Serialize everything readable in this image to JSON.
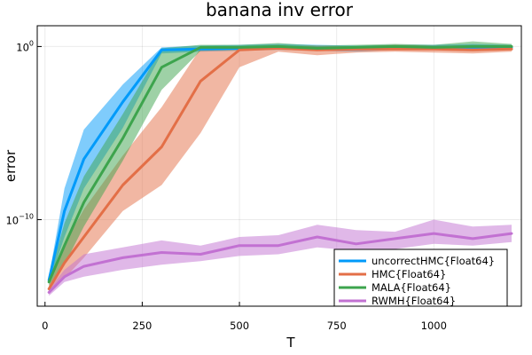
{
  "chart_data": {
    "type": "line",
    "title": "banana inv error",
    "xlabel": "T",
    "ylabel": "error",
    "xlim": [
      -20,
      1225
    ],
    "ylim_log10": [
      -15,
      1.2
    ],
    "yscale": "log10",
    "grid": true,
    "legend_position": "bottom-right",
    "x_ticks": [
      {
        "value": 0,
        "label": "0"
      },
      {
        "value": 250,
        "label": "250"
      },
      {
        "value": 500,
        "label": "500"
      },
      {
        "value": 750,
        "label": "750"
      },
      {
        "value": 1000,
        "label": "1000"
      }
    ],
    "y_ticks": [
      {
        "log10": 0,
        "base": "10",
        "exp": "0"
      },
      {
        "log10": -10,
        "base": "10",
        "exp": "−10"
      }
    ],
    "x": [
      10,
      50,
      100,
      200,
      300,
      400,
      500,
      600,
      700,
      800,
      900,
      1000,
      1100,
      1200
    ],
    "series": [
      {
        "name": "uncorrectHMC{Float64}",
        "color": "#009AFA",
        "log10_error": [
          -13.5,
          -9.5,
          -6.5,
          -3.2,
          -0.2,
          -0.15,
          -0.1,
          -0.05,
          -0.1,
          -0.1,
          -0.05,
          -0.05,
          -0.05,
          -0.05
        ],
        "band_lo": [
          -13.7,
          -11.0,
          -8.2,
          -4.7,
          -0.4,
          -0.3,
          -0.25,
          -0.2,
          -0.25,
          -0.3,
          -0.2,
          -0.2,
          -0.2,
          -0.2
        ],
        "band_hi": [
          -13.3,
          -8.2,
          -4.8,
          -2.2,
          -0.05,
          0.05,
          0.1,
          0.15,
          0.1,
          0.05,
          0.1,
          0.1,
          0.15,
          0.1
        ]
      },
      {
        "name": "HMC{Float64}",
        "color": "#E36F47",
        "log10_error": [
          -14.0,
          -12.5,
          -11.0,
          -8.0,
          -5.8,
          -2.0,
          -0.2,
          -0.1,
          -0.2,
          -0.15,
          -0.15,
          -0.15,
          -0.2,
          -0.15
        ],
        "band_lo": [
          -14.2,
          -13.4,
          -12.2,
          -9.5,
          -8.0,
          -5.0,
          -1.2,
          -0.3,
          -0.5,
          -0.35,
          -0.3,
          -0.35,
          -0.4,
          -0.3
        ],
        "band_hi": [
          -13.8,
          -11.4,
          -9.4,
          -6.3,
          -3.5,
          -0.1,
          -0.05,
          0.0,
          0.05,
          0.0,
          0.1,
          0.05,
          0.05,
          0.05
        ]
      },
      {
        "name": "MALA{Float64}",
        "color": "#3DA44D",
        "log10_error": [
          -13.6,
          -11.5,
          -9.0,
          -5.3,
          -1.2,
          -0.05,
          -0.05,
          0.0,
          -0.1,
          -0.05,
          0.0,
          -0.05,
          0.0,
          0.0
        ],
        "band_lo": [
          -13.8,
          -12.6,
          -10.4,
          -6.6,
          -2.5,
          -0.25,
          -0.2,
          -0.15,
          -0.2,
          -0.2,
          -0.15,
          -0.2,
          -0.25,
          -0.15
        ],
        "band_hi": [
          -13.4,
          -10.2,
          -7.5,
          -3.9,
          -0.1,
          0.1,
          0.1,
          0.2,
          0.05,
          0.1,
          0.15,
          0.1,
          0.3,
          0.15
        ]
      },
      {
        "name": "RWMH{Float64}",
        "color": "#C271D2",
        "log10_error": [
          -14.2,
          -13.3,
          -12.7,
          -12.2,
          -11.9,
          -12.0,
          -11.5,
          -11.5,
          -11.0,
          -11.4,
          -11.1,
          -10.8,
          -11.1,
          -10.8
        ],
        "band_lo": [
          -14.4,
          -13.6,
          -13.3,
          -12.9,
          -12.6,
          -12.4,
          -12.1,
          -12.0,
          -11.6,
          -11.8,
          -11.7,
          -11.4,
          -11.5,
          -11.3
        ],
        "band_hi": [
          -14.0,
          -12.9,
          -12.0,
          -11.6,
          -11.2,
          -11.5,
          -11.0,
          -10.9,
          -10.3,
          -10.6,
          -10.7,
          -10.0,
          -10.4,
          -10.3
        ]
      }
    ]
  }
}
